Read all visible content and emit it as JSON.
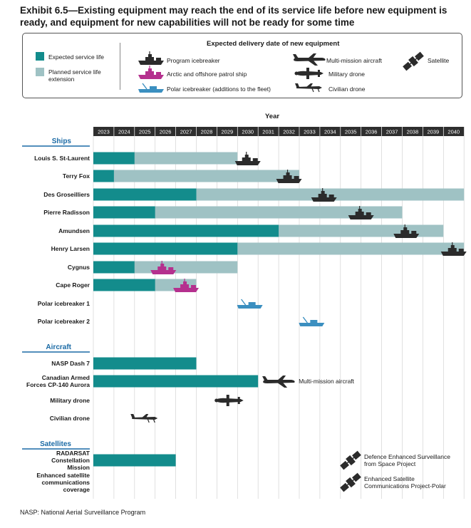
{
  "title": "Exhibit 6.5—Existing equipment may reach the end of its service life before new equipment is ready, and equipment for new capabilities will not be ready for some time",
  "footer": "NASP: National Aerial Surveillance Program",
  "colors": {
    "expected": "#138c8c",
    "extension": "#9fc2c4",
    "program_icebreaker": "#2b2b2b",
    "patrol_ship": "#b5308e",
    "polar_icebreaker": "#3b8fc0",
    "section": "#1a6aa5",
    "year_band": "#2e2e2e"
  },
  "legend": {
    "heading": "Expected delivery date of new equipment",
    "expected_service_life": "Expected service life",
    "planned_extension": "Planned service life extension",
    "icons": [
      {
        "name": "ship-icon",
        "label": "Program icebreaker"
      },
      {
        "name": "ship-icon",
        "label": "Arctic and offshore patrol ship"
      },
      {
        "name": "ship-icon",
        "label": "Polar icebreaker (additions to the fleet)"
      },
      {
        "name": "aircraft-icon",
        "label": "Multi-mission aircraft"
      },
      {
        "name": "drone-icon",
        "label": "Military drone"
      },
      {
        "name": "drone-icon",
        "label": "Civilian drone"
      },
      {
        "name": "satellite-icon",
        "label": "Satellite"
      }
    ]
  },
  "chart_data": {
    "type": "bar",
    "orientation": "horizontal-timeline",
    "xlabel": "Year",
    "years": [
      "2023",
      "2024",
      "2025",
      "2026",
      "2027",
      "2028",
      "2029",
      "2030",
      "2031",
      "2032",
      "2033",
      "2034",
      "2035",
      "2036",
      "2037",
      "2038",
      "2039",
      "2040"
    ],
    "sections": [
      {
        "name": "Ships",
        "rows": [
          {
            "label": "Louis S. St-Laurent",
            "expected_end": 2025,
            "extension_end": 2030,
            "marker": {
              "type": "program",
              "x": 2030.5
            }
          },
          {
            "label": "Terry Fox",
            "expected_end": 2024,
            "extension_end": 2033,
            "marker": {
              "type": "program",
              "x": 2032.5
            }
          },
          {
            "label": "Des Groseilliers",
            "expected_end": 2028,
            "extension_end": 2041,
            "marker": {
              "type": "program",
              "x": 2034.2
            }
          },
          {
            "label": "Pierre Radisson",
            "expected_end": 2026,
            "extension_end": 2038,
            "marker": {
              "type": "program",
              "x": 2036
            }
          },
          {
            "label": "Amundsen",
            "expected_end": 2032,
            "extension_end": 2040,
            "marker": {
              "type": "program",
              "x": 2038.2
            }
          },
          {
            "label": "Henry Larsen",
            "expected_end": 2030,
            "extension_end": 2041,
            "marker": {
              "type": "program",
              "x": 2040.5
            }
          },
          {
            "label": "Cygnus",
            "expected_end": 2025,
            "extension_end": 2030,
            "marker": {
              "type": "patrol",
              "x": 2026.4
            }
          },
          {
            "label": "Cape Roger",
            "expected_end": 2026,
            "extension_end": 2028,
            "marker": {
              "type": "patrol",
              "x": 2027.5
            }
          },
          {
            "label": "Polar icebreaker 1",
            "marker": {
              "type": "polar",
              "x": 2030.6
            }
          },
          {
            "label": "Polar icebreaker 2",
            "marker": {
              "type": "polar",
              "x": 2033.6
            }
          }
        ]
      },
      {
        "name": "Aircraft",
        "rows": [
          {
            "label": "NASP Dash 7",
            "expected_end": 2028
          },
          {
            "label": "Canadian Armed Forces CP-140 Aurora",
            "expected_end": 2031,
            "marker": {
              "type": "aircraft",
              "x": 2032,
              "annotation": "Multi-mission aircraft"
            }
          },
          {
            "label": "Military drone",
            "marker": {
              "type": "military_drone",
              "x": 2029.6
            }
          },
          {
            "label": "Civilian drone",
            "marker": {
              "type": "civilian_drone",
              "x": 2025.5
            }
          }
        ]
      },
      {
        "name": "Satellites",
        "rows": [
          {
            "label": "RADARSAT Constellation Mission",
            "expected_end": 2027,
            "annotation": "Defence Enhanced Surveillance from Space Project"
          },
          {
            "label": "Enhanced satellite communications coverage",
            "annotation": "Enhanced Satellite Communications Project-Polar"
          }
        ]
      }
    ]
  }
}
